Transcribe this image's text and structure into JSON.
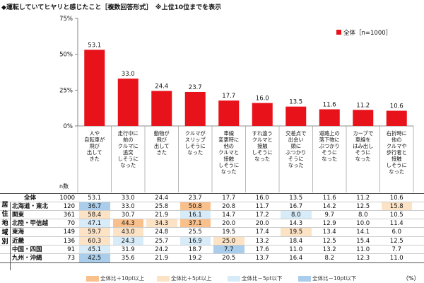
{
  "title": "◆運転していてヒヤリと感じたこと［複数回答形式］　※上位10位までを表示",
  "legend_label": "全体［n=1000］",
  "n_header": "n数",
  "unit_label": "（%）",
  "legend_bottom": [
    "全体比＋10pt以上",
    "全体比＋5pt以上",
    "全体比－5pt以下",
    "全体比－10pt以下"
  ],
  "colors": {
    "bar": "#e8121a",
    "plus10": "#f9c08c",
    "plus5": "#fde3c6",
    "minus5": "#d7ebf8",
    "minus10": "#a9cdea"
  },
  "group_label": "居住地域別",
  "chart_data": {
    "type": "bar",
    "categories": [
      "人や\n自転車が\n飛び\n出して\nきた",
      "走行中に\n前の\nクルマに\n追突\nしそうに\nなった",
      "動物が\n飛び\n出して\nきた",
      "クルマが\nスリップ\nしそうに\nなった",
      "車線\n変更時に\n他の\nクルマと\n接触\nしそうに\nなった",
      "すれ違う\nクルマと\n接触\nしそうに\nなった",
      "交差点で\n出会い\n頭に\nぶつかり\nそうに\nなった",
      "道路上の\n落下物に\nぶつかり\nそうに\nなった",
      "カーブで\n車線を\nはみ出し\nそうに\nなった",
      "右折時に\n他の\nクルマや\n歩行者と\n接触\nしそうに\nなった"
    ],
    "series": [
      {
        "name": "全体［n=1000］",
        "values": [
          53.1,
          33.0,
          24.4,
          23.7,
          17.7,
          16.0,
          13.5,
          11.6,
          11.2,
          10.6
        ]
      }
    ],
    "ylim": [
      0,
      75
    ],
    "yticks": [
      "0%",
      "25%",
      "50%",
      "75%"
    ],
    "ytick_values": [
      0,
      25,
      50,
      75
    ]
  },
  "table": {
    "rows": [
      {
        "label": "全体",
        "n": "1000",
        "values": [
          "53.1",
          "33.0",
          "24.4",
          "23.7",
          "17.7",
          "16.0",
          "13.5",
          "11.6",
          "11.2",
          "10.6"
        ],
        "hl": [
          "",
          "",
          "",
          "",
          "",
          "",
          "",
          "",
          "",
          ""
        ]
      },
      {
        "label": "北海道・東北",
        "n": "120",
        "values": [
          "36.7",
          "33.0",
          "25.8",
          "50.8",
          "20.8",
          "11.7",
          "16.7",
          "14.2",
          "12.5",
          "15.8"
        ],
        "hl": [
          "minus10",
          "",
          "",
          "plus10",
          "",
          "",
          "",
          "",
          "",
          "plus5"
        ]
      },
      {
        "label": "関東",
        "n": "361",
        "values": [
          "58.4",
          "30.7",
          "21.9",
          "16.1",
          "14.7",
          "17.2",
          "8.0",
          "9.7",
          "8.0",
          "10.5"
        ],
        "hl": [
          "plus5",
          "",
          "",
          "minus5",
          "",
          "",
          "minus5",
          "",
          "",
          ""
        ]
      },
      {
        "label": "北陸・甲信越",
        "n": "70",
        "values": [
          "47.1",
          "44.3",
          "34.3",
          "37.1",
          "20.0",
          "20.0",
          "14.3",
          "12.9",
          "10.0",
          "11.4"
        ],
        "hl": [
          "minus5",
          "plus10",
          "plus5",
          "plus10",
          "",
          "",
          "",
          "",
          "",
          ""
        ]
      },
      {
        "label": "東海",
        "n": "149",
        "values": [
          "59.7",
          "43.0",
          "24.8",
          "25.5",
          "19.5",
          "17.4",
          "19.5",
          "13.4",
          "14.1",
          "6.0"
        ],
        "hl": [
          "plus5",
          "plus5",
          "",
          "",
          "",
          "",
          "plus5",
          "",
          "",
          ""
        ]
      },
      {
        "label": "近畿",
        "n": "136",
        "values": [
          "60.3",
          "24.3",
          "25.7",
          "16.9",
          "25.0",
          "13.2",
          "18.4",
          "12.5",
          "15.4",
          "12.5"
        ],
        "hl": [
          "plus5",
          "minus5",
          "",
          "minus5",
          "plus5",
          "",
          "",
          "",
          "",
          ""
        ]
      },
      {
        "label": "中国・四国",
        "n": "91",
        "values": [
          "45.1",
          "31.9",
          "24.2",
          "18.7",
          "7.7",
          "17.6",
          "11.0",
          "13.2",
          "11.0",
          "7.7"
        ],
        "hl": [
          "minus5",
          "",
          "",
          "",
          "minus10",
          "",
          "",
          "",
          "",
          ""
        ]
      },
      {
        "label": "九州・沖縄",
        "n": "73",
        "values": [
          "42.5",
          "35.6",
          "21.9",
          "19.2",
          "20.5",
          "13.7",
          "16.4",
          "8.2",
          "12.3",
          "11.0"
        ],
        "hl": [
          "minus10",
          "",
          "",
          "",
          "",
          "",
          "",
          "",
          "",
          ""
        ]
      }
    ]
  }
}
